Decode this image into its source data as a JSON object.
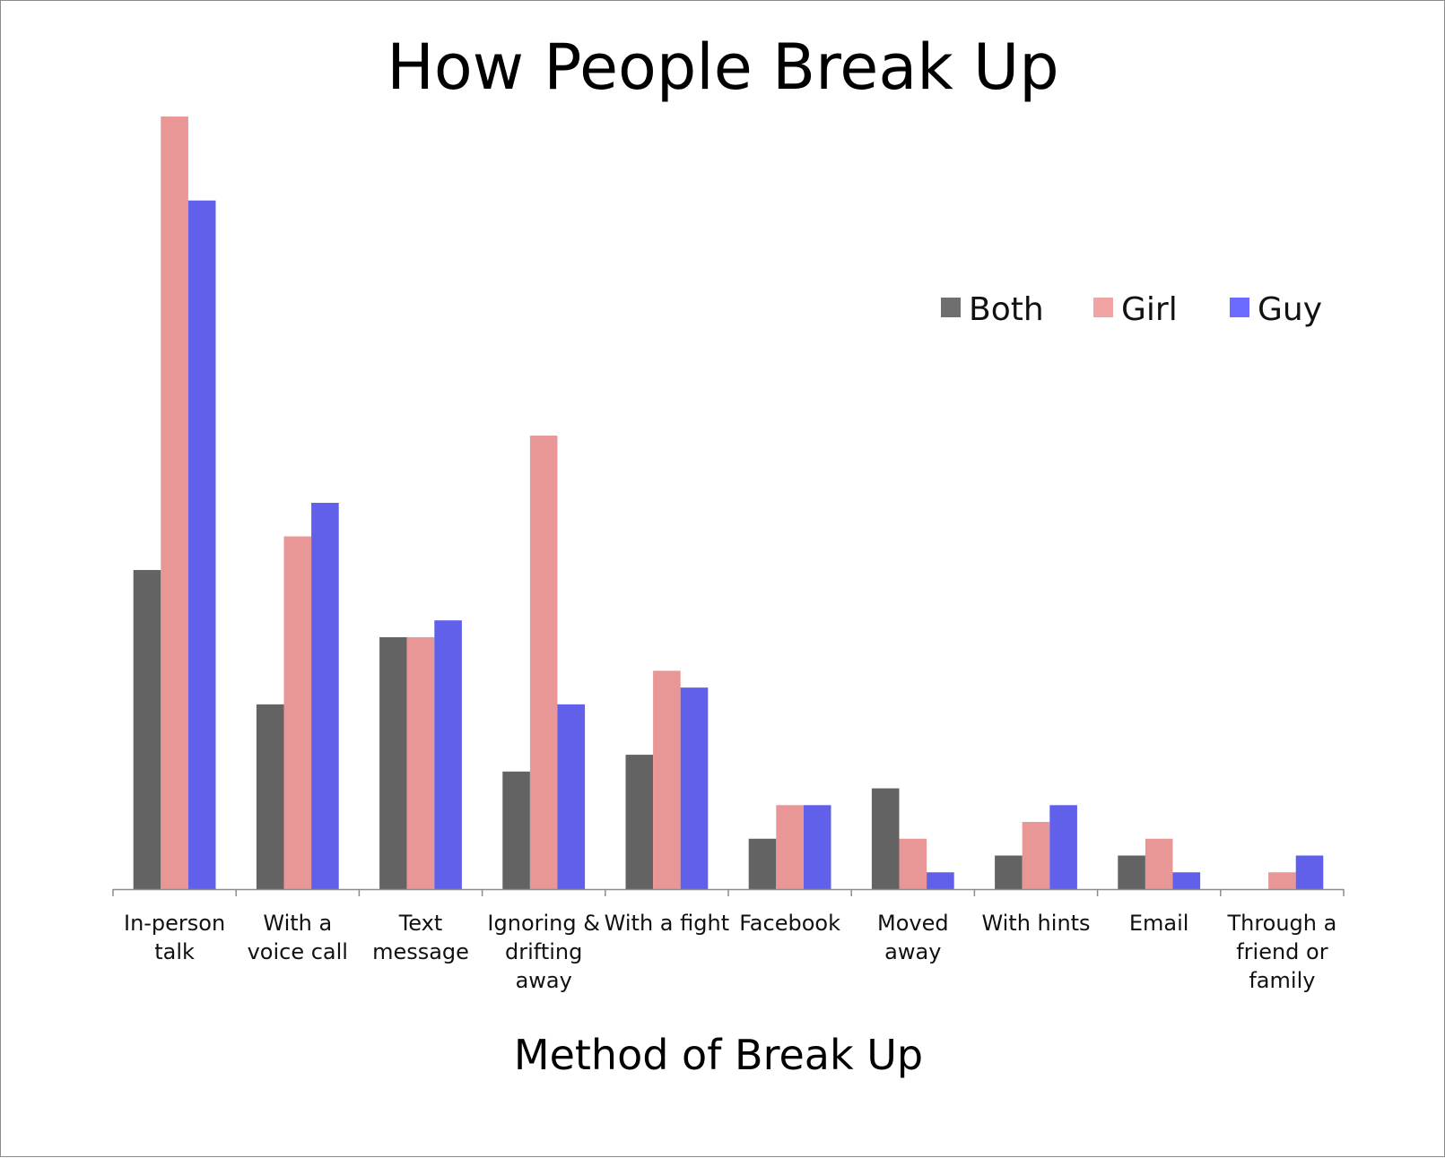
{
  "chart_data": {
    "type": "bar",
    "title": "How People Break Up",
    "xlabel": "Method of Break Up",
    "ylabel": "",
    "ylim": [
      0,
      46
    ],
    "grid": false,
    "legend_position": "top-right",
    "categories": [
      [
        "In-person",
        "talk"
      ],
      [
        "With a",
        "voice call"
      ],
      [
        "Text",
        "message"
      ],
      [
        "Ignoring &",
        "drifting",
        "away"
      ],
      [
        "With a fight"
      ],
      [
        "Facebook"
      ],
      [
        "Moved",
        "away"
      ],
      [
        "With hints"
      ],
      [
        "Email"
      ],
      [
        "Through a",
        "friend or",
        "family"
      ]
    ],
    "series": [
      {
        "name": "Both",
        "color": "#636363",
        "legend_color": "#6f6f6f",
        "values": [
          19,
          11,
          15,
          7,
          8,
          3,
          6,
          2,
          2,
          0
        ]
      },
      {
        "name": "Girl",
        "color": "#e89696",
        "legend_color": "#f2a3a3",
        "values": [
          46,
          21,
          15,
          27,
          13,
          5,
          3,
          4,
          3,
          1
        ]
      },
      {
        "name": "Guy",
        "color": "#6060ea",
        "legend_color": "#6b6bff",
        "values": [
          41,
          23,
          16,
          11,
          12,
          5,
          1,
          5,
          1,
          2
        ]
      }
    ]
  }
}
